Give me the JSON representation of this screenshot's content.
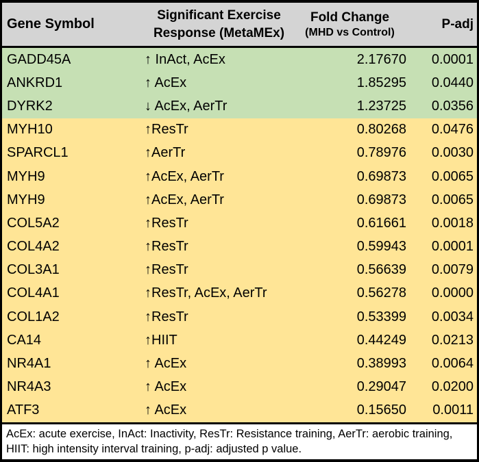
{
  "colors": {
    "header_bg": "#d4d4d4",
    "upregulated_group_bg": "#c6e0b4",
    "downregulated_group_bg": "#ffe596",
    "border": "#000000",
    "footnote_bg": "#ffffff"
  },
  "table": {
    "header": {
      "gene_symbol": "Gene Symbol",
      "response_line1": "Significant Exercise",
      "response_line2": "Response (MetaMEx)",
      "fold_change_line1": "Fold Change",
      "fold_change_line2": "(MHD vs Control)",
      "p_adj": "P-adj"
    },
    "rows": [
      {
        "gene": "GADD45A",
        "response": "↑ InAct, AcEx",
        "fold_change": "2.17670",
        "p_adj": "0.0001",
        "highlight": "green"
      },
      {
        "gene": "ANKRD1",
        "response": "↑ AcEx",
        "fold_change": "1.85295",
        "p_adj": "0.0440",
        "highlight": "green"
      },
      {
        "gene": "DYRK2",
        "response": "↓ AcEx, AerTr",
        "fold_change": "1.23725",
        "p_adj": "0.0356",
        "highlight": "green"
      },
      {
        "gene": "MYH10",
        "response": "↑ResTr",
        "fold_change": "0.80268",
        "p_adj": "0.0476",
        "highlight": "yellow"
      },
      {
        "gene": "SPARCL1",
        "response": "↑AerTr",
        "fold_change": "0.78976",
        "p_adj": "0.0030",
        "highlight": "yellow"
      },
      {
        "gene": "MYH9",
        "response": "↑AcEx, AerTr",
        "fold_change": "0.69873",
        "p_adj": "0.0065",
        "highlight": "yellow"
      },
      {
        "gene": "MYH9",
        "response": "↑AcEx, AerTr",
        "fold_change": "0.69873",
        "p_adj": "0.0065",
        "highlight": "yellow"
      },
      {
        "gene": "COL5A2",
        "response": "↑ResTr",
        "fold_change": "0.61661",
        "p_adj": "0.0018",
        "highlight": "yellow"
      },
      {
        "gene": "COL4A2",
        "response": "↑ResTr",
        "fold_change": "0.59943",
        "p_adj": "0.0001",
        "highlight": "yellow"
      },
      {
        "gene": "COL3A1",
        "response": "↑ResTr",
        "fold_change": "0.56639",
        "p_adj": "0.0079",
        "highlight": "yellow"
      },
      {
        "gene": "COL4A1",
        "response": "↑ResTr, AcEx, AerTr",
        "fold_change": "0.56278",
        "p_adj": "0.0000",
        "highlight": "yellow"
      },
      {
        "gene": "COL1A2",
        "response": "↑ResTr",
        "fold_change": "0.53399",
        "p_adj": "0.0034",
        "highlight": "yellow"
      },
      {
        "gene": "CA14",
        "response": "↑HIIT",
        "fold_change": "0.44249",
        "p_adj": "0.0213",
        "highlight": "yellow"
      },
      {
        "gene": "NR4A1",
        "response": "↑ AcEx",
        "fold_change": "0.38993",
        "p_adj": "0.0064",
        "highlight": "yellow"
      },
      {
        "gene": "NR4A3",
        "response": "↑ AcEx",
        "fold_change": "0.29047",
        "p_adj": "0.0200",
        "highlight": "yellow"
      },
      {
        "gene": "ATF3",
        "response": "↑ AcEx",
        "fold_change": "0.15650",
        "p_adj": "0.0011",
        "highlight": "yellow"
      }
    ],
    "footnote_line1": "AcEx: acute exercise, InAct: Inactivity, ResTr: Resistance training, AerTr: aerobic training,",
    "footnote_line2": "HIIT: high intensity interval training, p-adj: adjusted p value."
  }
}
